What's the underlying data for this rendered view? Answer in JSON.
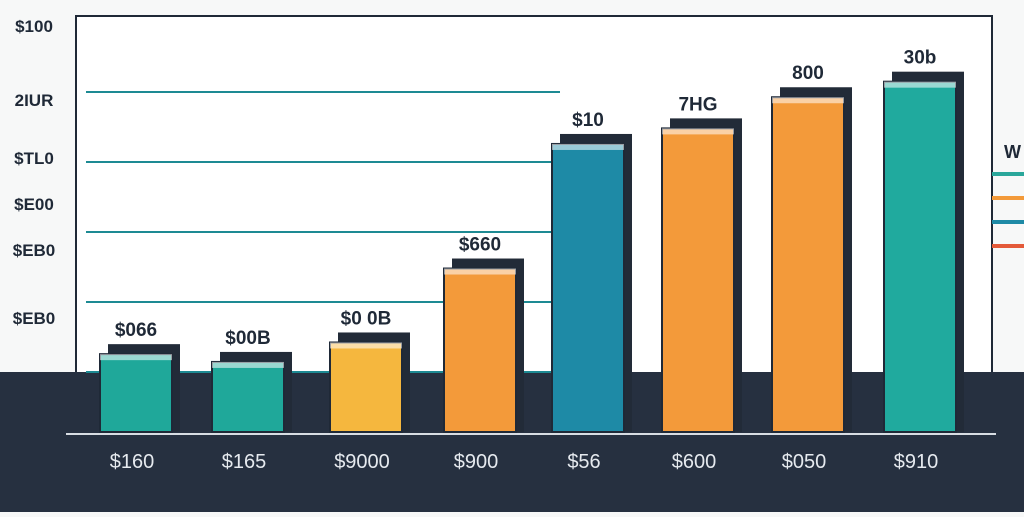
{
  "chart_data": {
    "type": "bar",
    "title": "",
    "xlabel": "",
    "ylabel": "",
    "ylim": [
      0,
      1
    ],
    "y_tick_labels": [
      "$100",
      "2IUR",
      "$TL0",
      "$E00",
      "$EB0",
      "$EB0"
    ],
    "categories": [
      "$160",
      "$165",
      "$9000",
      "$900",
      "$56",
      "$600",
      "$050",
      "$910"
    ],
    "data_labels": [
      "$066",
      "$00B",
      "$0 0B",
      "$660",
      "$10",
      "7HG",
      "800",
      "30b"
    ],
    "values": [
      0.2,
      0.18,
      0.23,
      0.42,
      0.74,
      0.78,
      0.86,
      0.9
    ],
    "bar_colors": [
      "#1fa89a",
      "#1fa89a",
      "#f5b73e",
      "#f39a3a",
      "#1e8aa6",
      "#f39a3a",
      "#f39a3a",
      "#20aa9e"
    ],
    "grid": true,
    "legend": {
      "position": "right",
      "text": "W",
      "colors": [
        "#2aa79b",
        "#f39a3a",
        "#1e8aa6",
        "#e45a3a"
      ]
    }
  }
}
